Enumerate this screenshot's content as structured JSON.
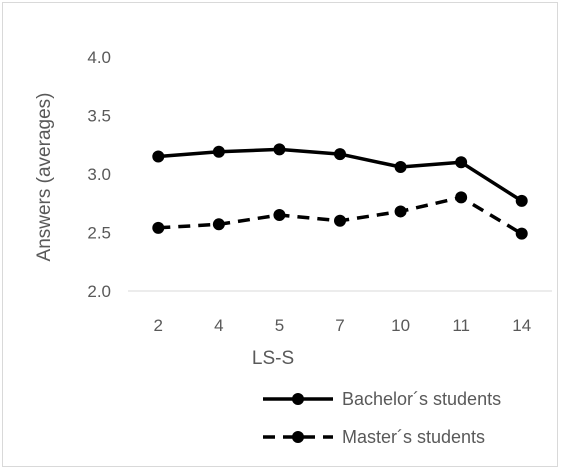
{
  "chart_data": {
    "type": "line",
    "categories": [
      "2",
      "4",
      "5",
      "7",
      "10",
      "11",
      "14"
    ],
    "series": [
      {
        "name": "Bachelor´s students",
        "values": [
          3.15,
          3.19,
          3.21,
          3.17,
          3.06,
          3.1,
          2.77
        ],
        "style": "solid",
        "color": "#000000"
      },
      {
        "name": "Master´s students",
        "values": [
          2.54,
          2.57,
          2.65,
          2.6,
          2.68,
          2.8,
          2.49
        ],
        "style": "dashed",
        "color": "#000000"
      }
    ],
    "xlabel": "LS-S",
    "ylabel": "Answers (averages)",
    "ylim": [
      2.0,
      4.0
    ],
    "yticks": [
      "2.0",
      "2.5",
      "3.0",
      "3.5",
      "4.0"
    ],
    "grid": false,
    "legend_position": "bottom-right"
  }
}
